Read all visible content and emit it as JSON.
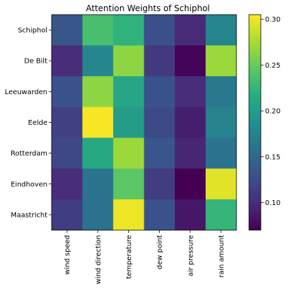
{
  "chart_data": {
    "type": "heatmap",
    "title": "Attention Weights of Schiphol",
    "rows": [
      "Schiphol",
      "De Bilt",
      "Leeuwarden",
      "Eelde",
      "Rotterdam",
      "Eindhoven",
      "Maastricht"
    ],
    "columns": [
      "wind speed",
      "wind direction",
      "temperature",
      "dew point",
      "air pressure",
      "rain amount"
    ],
    "values": [
      [
        0.133,
        0.235,
        0.222,
        0.128,
        0.098,
        0.178
      ],
      [
        0.1,
        0.178,
        0.265,
        0.11,
        0.072,
        0.27
      ],
      [
        0.13,
        0.265,
        0.21,
        0.13,
        0.1,
        0.165
      ],
      [
        0.115,
        0.303,
        0.2,
        0.123,
        0.09,
        0.175
      ],
      [
        0.122,
        0.212,
        0.27,
        0.132,
        0.095,
        0.16
      ],
      [
        0.1,
        0.16,
        0.245,
        0.112,
        0.07,
        0.295
      ],
      [
        0.113,
        0.158,
        0.3,
        0.13,
        0.085,
        0.225
      ]
    ],
    "colorbar": {
      "min": 0.07,
      "max": 0.305,
      "ticks": [
        0.1,
        0.15,
        0.2,
        0.25,
        0.3
      ],
      "tick_labels": [
        "0.10",
        "0.15",
        "0.20",
        "0.25",
        "0.30"
      ],
      "colormap": "viridis"
    }
  }
}
